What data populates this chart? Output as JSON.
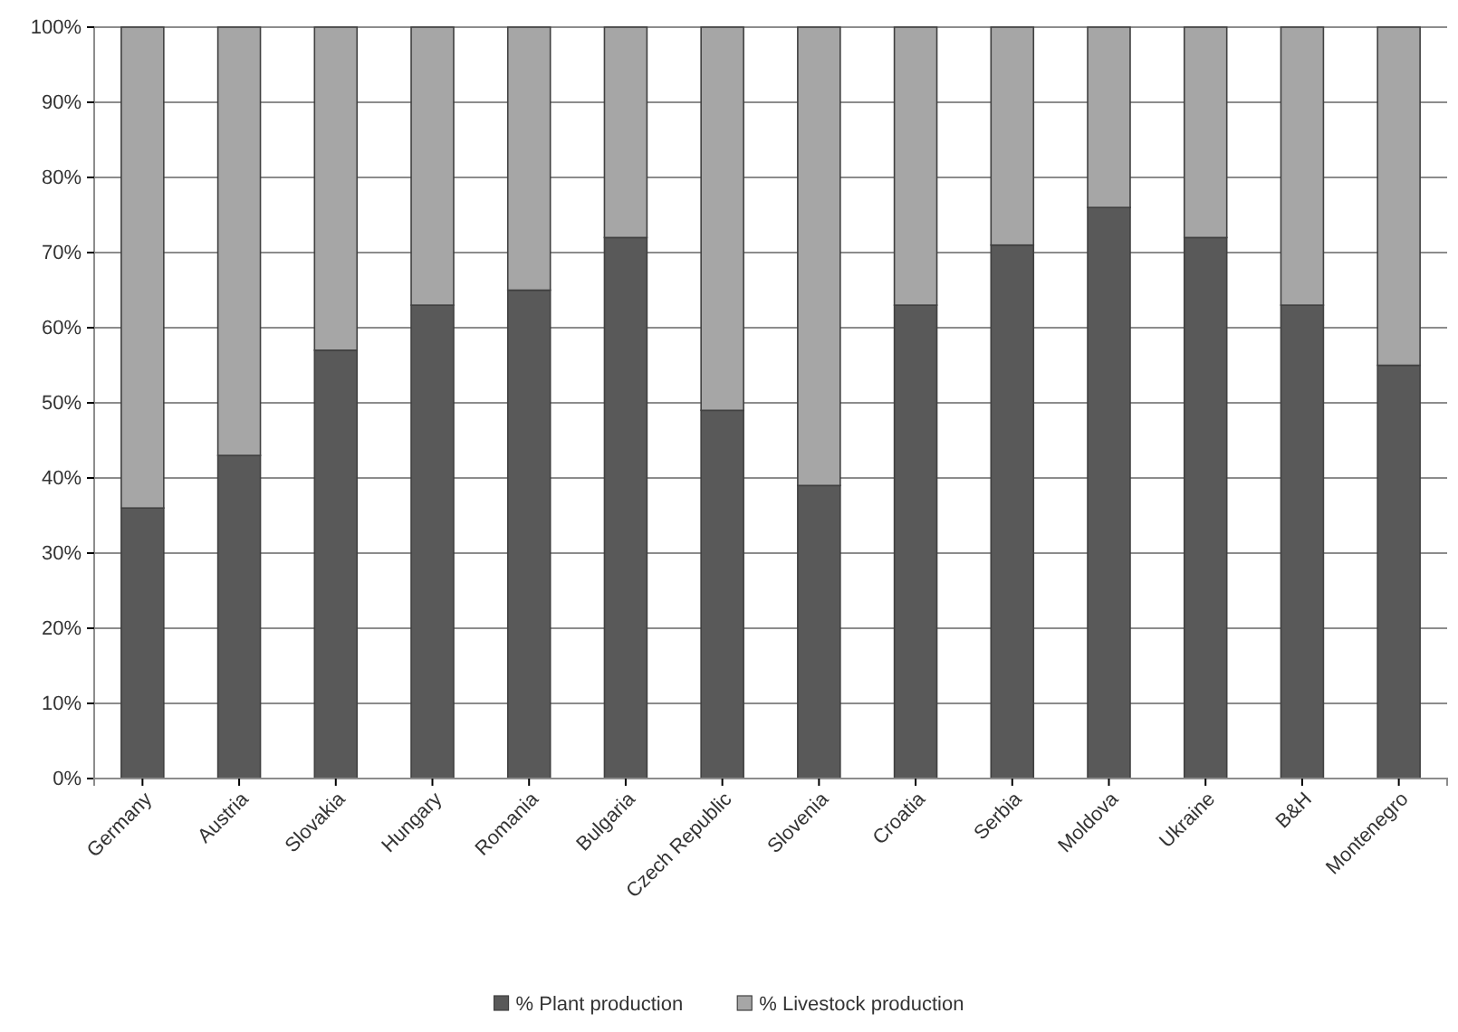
{
  "chart_data": {
    "type": "bar",
    "stacked": true,
    "categories": [
      "Germany",
      "Austria",
      "Slovakia",
      "Hungary",
      "Romania",
      "Bulgaria",
      "Czech Republic",
      "Slovenia",
      "Croatia",
      "Serbia",
      "Moldova",
      "Ukraine",
      "B&H",
      "Montenegro"
    ],
    "series": [
      {
        "name": "% Plant production",
        "color": "#595959",
        "values": [
          36,
          43,
          57,
          63,
          65,
          72,
          49,
          39,
          63,
          71,
          76,
          72,
          63,
          55
        ]
      },
      {
        "name": "% Livestock production",
        "color": "#a6a6a6",
        "values": [
          64,
          57,
          43,
          37,
          35,
          28,
          51,
          61,
          37,
          29,
          24,
          28,
          37,
          45
        ]
      }
    ],
    "ylim": [
      0,
      100
    ],
    "yticks": [
      {
        "value": 0,
        "label": "0%"
      },
      {
        "value": 10,
        "label": "10%"
      },
      {
        "value": 20,
        "label": "20%"
      },
      {
        "value": 30,
        "label": "30%"
      },
      {
        "value": 40,
        "label": "40%"
      },
      {
        "value": 50,
        "label": "50%"
      },
      {
        "value": 60,
        "label": "60%"
      },
      {
        "value": 70,
        "label": "70%"
      },
      {
        "value": 80,
        "label": "80%"
      },
      {
        "value": 90,
        "label": "90%"
      },
      {
        "value": 100,
        "label": "100%"
      }
    ],
    "grid": "y",
    "legend": "bottom"
  }
}
